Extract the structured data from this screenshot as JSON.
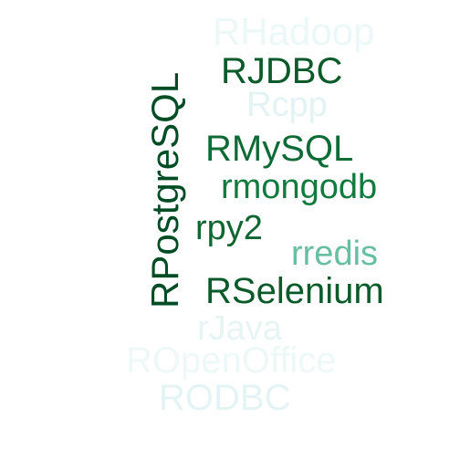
{
  "words": [
    {
      "text": "RHadoop",
      "color": "#ecf8f7"
    },
    {
      "text": "RJDBC",
      "color": "#0b5a2a"
    },
    {
      "text": "Rcpp",
      "color": "#e3f3f3"
    },
    {
      "text": "RPostgreSQL",
      "color": "#004d25"
    },
    {
      "text": "RMySQL",
      "color": "#0f6b35"
    },
    {
      "text": "rmongodb",
      "color": "#137a3e"
    },
    {
      "text": "rpy2",
      "color": "#0e6630"
    },
    {
      "text": "rredis",
      "color": "#66bfa0"
    },
    {
      "text": "RSelenium",
      "color": "#0b5a2a"
    },
    {
      "text": "rJava",
      "color": "#e6f5f4"
    },
    {
      "text": "ROpenOffice",
      "color": "#eef8f7"
    },
    {
      "text": "RODBC",
      "color": "#e4f4f4"
    }
  ]
}
